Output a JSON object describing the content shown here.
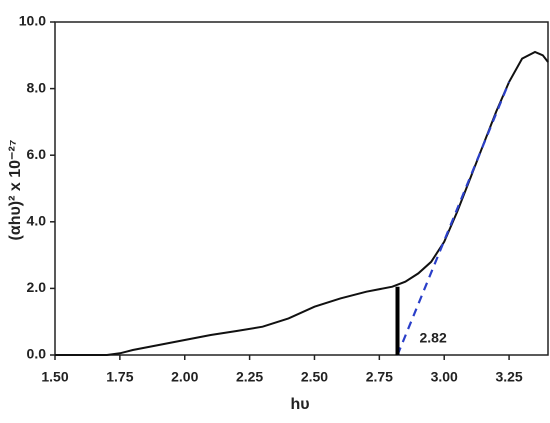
{
  "chart_data": {
    "type": "line",
    "x_label": "hυ",
    "y_label": "(αhυ)² x 10⁻²⁷",
    "x": [
      1.5,
      1.7,
      1.75,
      1.8,
      1.9,
      2.0,
      2.1,
      2.2,
      2.3,
      2.4,
      2.5,
      2.6,
      2.7,
      2.8,
      2.85,
      2.9,
      2.95,
      3.0,
      3.05,
      3.1,
      3.15,
      3.2,
      3.25,
      3.3,
      3.35,
      3.38,
      3.4
    ],
    "series": [
      {
        "color": "#111111",
        "values": [
          0,
          0,
          0.05,
          0.15,
          0.3,
          0.45,
          0.6,
          0.72,
          0.85,
          1.1,
          1.45,
          1.7,
          1.9,
          2.05,
          2.2,
          2.45,
          2.8,
          3.4,
          4.3,
          5.3,
          6.3,
          7.3,
          8.2,
          8.9,
          9.1,
          9.0,
          8.8
        ]
      }
    ],
    "tangent": {
      "x": [
        2.82,
        3.25
      ],
      "y": [
        0,
        8.2
      ],
      "color": "#2a3fc9"
    },
    "marker": {
      "x": 2.82,
      "y": 2.05,
      "color": "#000000"
    },
    "xlim": [
      1.5,
      3.4
    ],
    "ylim": [
      0,
      10
    ],
    "xticks": [
      {
        "value": 1.5,
        "label": "1.50"
      },
      1.75,
      {
        "value": 2.0,
        "label": "2.00"
      },
      2.25,
      {
        "value": 2.5,
        "label": "2.50"
      },
      2.75,
      {
        "value": 3.0,
        "label": "3.00"
      },
      3.25
    ],
    "yticks": [
      {
        "value": 0,
        "label": "0.0"
      },
      {
        "value": 2,
        "label": "2.0"
      },
      {
        "value": 4,
        "label": "4.0"
      },
      {
        "value": 6,
        "label": "6.0"
      },
      {
        "value": 8,
        "label": "8.0"
      },
      {
        "value": 10,
        "label": "10.0"
      }
    ]
  }
}
